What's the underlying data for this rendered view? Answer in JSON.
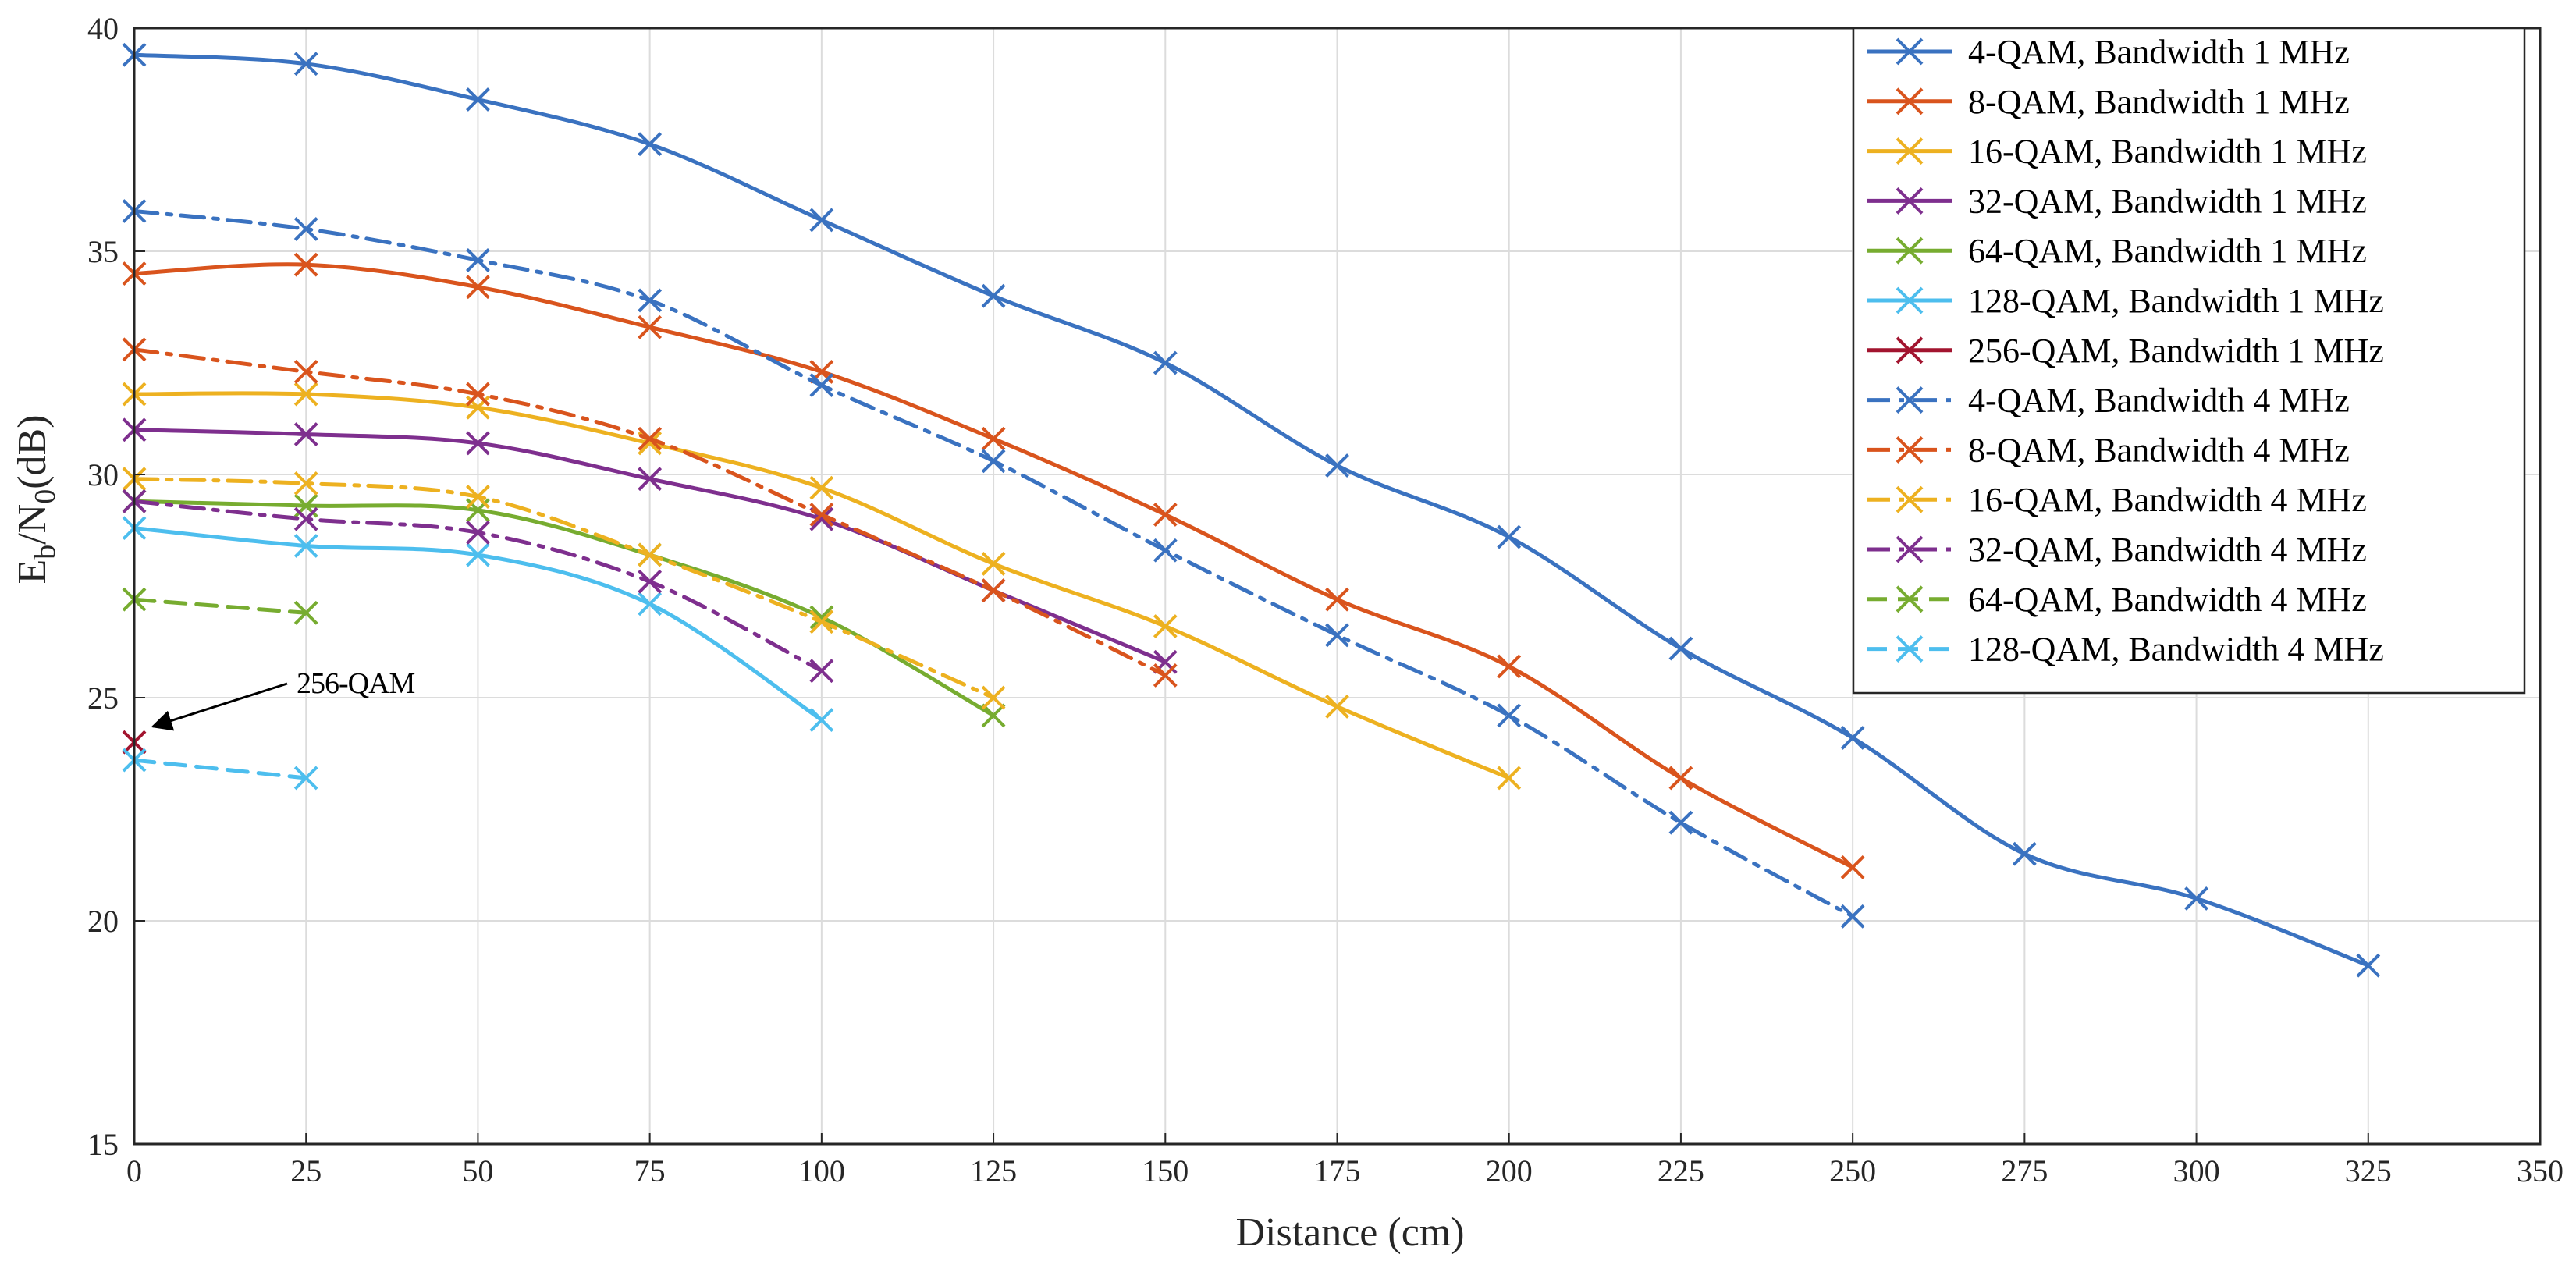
{
  "chart_data": {
    "type": "line",
    "title": "",
    "xlabel": "Distance (cm)",
    "ylabel_parts": {
      "e": "E",
      "b": "b",
      "slash_n": "/N",
      "zero": "0",
      "db": "(dB)"
    },
    "xlim": [
      0,
      350
    ],
    "ylim": [
      15,
      40
    ],
    "xticks": [
      0,
      25,
      50,
      75,
      100,
      125,
      150,
      175,
      200,
      225,
      250,
      275,
      300,
      325,
      350
    ],
    "yticks": [
      15,
      20,
      25,
      30,
      35,
      40
    ],
    "grid": true,
    "legend_position": "top-right",
    "annotation": {
      "text": "256-QAM",
      "points_to": {
        "x": 0,
        "y": 24
      }
    },
    "series": [
      {
        "name": "4-QAM, Bandwidth 1 MHz",
        "color": "#3a72c0",
        "style": "solid",
        "x": [
          0,
          25,
          50,
          75,
          100,
          125,
          150,
          175,
          200,
          225,
          250,
          275,
          300,
          325
        ],
        "y": [
          39.4,
          39.2,
          38.4,
          37.4,
          35.7,
          34.0,
          32.5,
          30.2,
          28.6,
          26.1,
          24.1,
          21.5,
          20.5,
          19.0
        ]
      },
      {
        "name": "8-QAM, Bandwidth 1 MHz",
        "color": "#d9541d",
        "style": "solid",
        "x": [
          0,
          25,
          50,
          75,
          100,
          125,
          150,
          175,
          200,
          225,
          250
        ],
        "y": [
          34.5,
          34.7,
          34.2,
          33.3,
          32.3,
          30.8,
          29.1,
          27.2,
          25.7,
          23.2,
          21.2
        ]
      },
      {
        "name": "16-QAM, Bandwidth 1 MHz",
        "color": "#edb120",
        "style": "solid",
        "x": [
          0,
          25,
          50,
          75,
          100,
          125,
          150,
          175,
          200
        ],
        "y": [
          31.8,
          31.8,
          31.5,
          30.7,
          29.7,
          28.0,
          26.6,
          24.8,
          23.2
        ]
      },
      {
        "name": "32-QAM, Bandwidth 1 MHz",
        "color": "#7e2f8e",
        "style": "solid",
        "x": [
          0,
          25,
          50,
          75,
          100,
          125,
          150
        ],
        "y": [
          31.0,
          30.9,
          30.7,
          29.9,
          29.0,
          27.4,
          25.8
        ]
      },
      {
        "name": "64-QAM, Bandwidth 1 MHz",
        "color": "#77ac30",
        "style": "solid",
        "x": [
          0,
          25,
          50,
          75,
          100,
          125
        ],
        "y": [
          29.4,
          29.3,
          29.2,
          28.2,
          26.8,
          24.6
        ]
      },
      {
        "name": "128-QAM, Bandwidth 1 MHz",
        "color": "#4dbeee",
        "style": "solid",
        "x": [
          0,
          25,
          50,
          75,
          100
        ],
        "y": [
          28.8,
          28.4,
          28.2,
          27.1,
          24.5
        ]
      },
      {
        "name": "256-QAM, Bandwidth 1 MHz",
        "color": "#a2142f",
        "style": "solid",
        "x": [
          0
        ],
        "y": [
          24.0
        ]
      },
      {
        "name": "4-QAM, Bandwidth 4 MHz",
        "color": "#3a72c0",
        "style": "dashdot",
        "x": [
          0,
          25,
          50,
          75,
          100,
          125,
          150,
          175,
          200,
          225,
          250
        ],
        "y": [
          35.9,
          35.5,
          34.8,
          33.9,
          32.0,
          30.3,
          28.3,
          26.4,
          24.6,
          22.2,
          20.1
        ]
      },
      {
        "name": "8-QAM, Bandwidth 4 MHz",
        "color": "#d9541d",
        "style": "dashdot",
        "x": [
          0,
          25,
          50,
          75,
          100,
          125,
          150
        ],
        "y": [
          32.8,
          32.3,
          31.8,
          30.8,
          29.1,
          27.4,
          25.5
        ]
      },
      {
        "name": "16-QAM, Bandwidth 4 MHz",
        "color": "#edb120",
        "style": "dashdot",
        "x": [
          0,
          25,
          50,
          75,
          100,
          125
        ],
        "y": [
          29.9,
          29.8,
          29.5,
          28.2,
          26.7,
          25.0
        ]
      },
      {
        "name": "32-QAM, Bandwidth 4 MHz",
        "color": "#7e2f8e",
        "style": "dashdot",
        "x": [
          0,
          25,
          50,
          75,
          100
        ],
        "y": [
          29.4,
          29.0,
          28.7,
          27.6,
          25.6
        ]
      },
      {
        "name": "64-QAM, Bandwidth 4 MHz",
        "color": "#77ac30",
        "style": "dashed",
        "x": [
          0,
          25
        ],
        "y": [
          27.2,
          26.9
        ]
      },
      {
        "name": "128-QAM, Bandwidth 4 MHz",
        "color": "#4dbeee",
        "style": "dashed",
        "x": [
          0,
          25
        ],
        "y": [
          23.6,
          23.2
        ]
      }
    ]
  }
}
